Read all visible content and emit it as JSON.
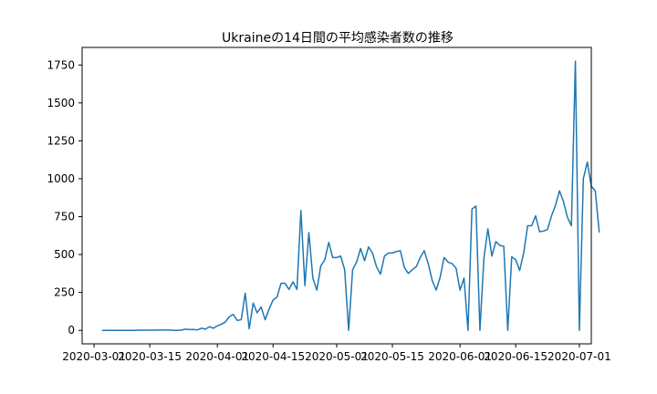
{
  "chart_data": {
    "type": "line",
    "title": "Ukraineの14日間の平均感染者数の推移",
    "xlabel": "",
    "ylabel": "",
    "x_start": "2020-03-03",
    "x_end": "2020-06-29",
    "xlim": [
      "2020-02-27",
      "2020-07-04"
    ],
    "ylim": [
      -89,
      1866
    ],
    "grid": false,
    "xtick_labels": [
      "2020-03-01",
      "2020-03-15",
      "2020-04-01",
      "2020-04-15",
      "2020-05-01",
      "2020-05-15",
      "2020-06-01",
      "2020-06-15",
      "2020-07-01"
    ],
    "ytick_labels": [
      "0",
      "250",
      "500",
      "750",
      "1000",
      "1250",
      "1500",
      "1750"
    ],
    "ytick_values": [
      0,
      250,
      500,
      750,
      1000,
      1250,
      1500,
      1750
    ],
    "series": [
      {
        "color": "#1f77b4",
        "values": [
          0,
          0,
          0,
          0,
          0,
          0,
          0,
          0,
          0,
          1,
          1,
          1,
          1,
          1,
          2,
          2,
          2,
          2,
          0,
          0,
          2,
          8,
          5,
          6,
          3,
          14,
          8,
          24,
          14,
          30,
          40,
          55,
          90,
          105,
          65,
          70,
          245,
          10,
          180,
          115,
          155,
          70,
          140,
          200,
          220,
          310,
          310,
          270,
          320,
          270,
          790,
          295,
          645,
          345,
          265,
          425,
          465,
          580,
          480,
          480,
          490,
          400,
          0,
          400,
          450,
          540,
          460,
          550,
          510,
          420,
          370,
          490,
          510,
          510,
          520,
          525,
          415,
          375,
          400,
          420,
          480,
          525,
          440,
          330,
          265,
          350,
          480,
          450,
          440,
          410,
          265,
          345,
          0,
          800,
          820,
          0,
          475,
          670,
          490,
          585,
          560,
          555,
          0,
          485,
          465,
          395,
          510,
          690,
          690,
          755,
          650,
          655,
          665,
          755,
          825,
          920,
          850,
          745,
          690,
          1775,
          0,
          1000,
          1110,
          950,
          920,
          645
        ]
      }
    ]
  }
}
